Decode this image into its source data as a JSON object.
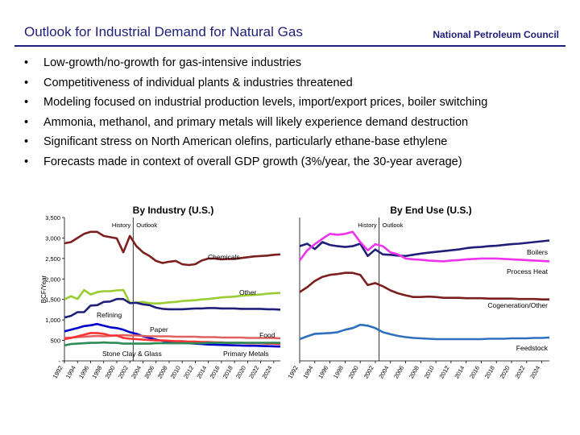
{
  "header": {
    "title": "Outlook for Industrial Demand for Natural Gas",
    "org": "National Petroleum Council"
  },
  "bullets": [
    "Low-growth/no-growth for gas-intensive industries",
    "Competitiveness of individual plants & industries threatened",
    "Modeling focused on industrial production levels, import/export prices, boiler switching",
    "Ammonia, methanol, and primary metals will likely experience demand destruction",
    "Significant stress on North American olefins, particularly ethane-base ethylene",
    "Forecasts made in context of overall GDP growth (3%/year, the 30-year average)"
  ],
  "chart_data": [
    {
      "type": "line",
      "title": "By Industry (U.S.)",
      "ylabel": "BCF/Year",
      "xlabel": "",
      "ylim": [
        0,
        3500
      ],
      "xlim": [
        1992,
        2025
      ],
      "yticks": [
        0,
        500,
        1000,
        1500,
        2000,
        2500,
        3000,
        3500
      ],
      "ytick_labels": [
        "-",
        "500",
        "1,000",
        "1,500",
        "2,000",
        "2,500",
        "3,000",
        "3,500"
      ],
      "xticks": [
        "1992",
        "1994",
        "1996",
        "1998",
        "2000",
        "2002",
        "2004",
        "2006",
        "2008",
        "2010",
        "2012",
        "2014",
        "2016",
        "2018",
        "2020",
        "2022",
        "2024"
      ],
      "divider_year": 2002.5,
      "history_label": "History",
      "outlook_label": "Outlook",
      "grid": false,
      "series": [
        {
          "name": "Chemicals",
          "color": "#7b1f1f",
          "x": [
            1992,
            1993,
            1994,
            1995,
            1996,
            1997,
            1998,
            1999,
            2000,
            2001,
            2002,
            2003,
            2004,
            2005,
            2006,
            2007,
            2008,
            2009,
            2010,
            2011,
            2012,
            2013,
            2014,
            2015,
            2016,
            2017,
            2018,
            2019,
            2020,
            2021,
            2022,
            2023,
            2024,
            2025
          ],
          "values": [
            2870,
            2900,
            3000,
            3100,
            3150,
            3150,
            3050,
            3020,
            2990,
            2650,
            3050,
            2800,
            2650,
            2560,
            2440,
            2390,
            2420,
            2440,
            2360,
            2340,
            2360,
            2450,
            2500,
            2500,
            2480,
            2490,
            2490,
            2510,
            2530,
            2550,
            2560,
            2570,
            2590,
            2600
          ]
        },
        {
          "name": "Other",
          "color": "#9acd32",
          "x": [
            1992,
            1993,
            1994,
            1995,
            1996,
            1997,
            1998,
            1999,
            2000,
            2001,
            2002,
            2003,
            2004,
            2005,
            2006,
            2007,
            2008,
            2009,
            2010,
            2011,
            2012,
            2013,
            2014,
            2015,
            2016,
            2017,
            2018,
            2019,
            2020,
            2021,
            2022,
            2023,
            2024,
            2025
          ],
          "values": [
            1500,
            1580,
            1510,
            1730,
            1620,
            1680,
            1700,
            1700,
            1720,
            1730,
            1420,
            1420,
            1440,
            1410,
            1400,
            1410,
            1430,
            1440,
            1460,
            1470,
            1480,
            1500,
            1510,
            1530,
            1550,
            1560,
            1570,
            1590,
            1600,
            1610,
            1620,
            1640,
            1650,
            1660
          ]
        },
        {
          "name": "Refining",
          "color": "#1f1f7a",
          "x": [
            1992,
            1993,
            1994,
            1995,
            1996,
            1997,
            1998,
            1999,
            2000,
            2001,
            2002,
            2003,
            2004,
            2005,
            2006,
            2007,
            2008,
            2009,
            2010,
            2011,
            2012,
            2013,
            2014,
            2015,
            2016,
            2017,
            2018,
            2019,
            2020,
            2021,
            2022,
            2023,
            2024,
            2025
          ],
          "values": [
            1060,
            1100,
            1190,
            1190,
            1350,
            1360,
            1440,
            1450,
            1510,
            1510,
            1410,
            1420,
            1380,
            1360,
            1300,
            1270,
            1260,
            1260,
            1260,
            1270,
            1280,
            1280,
            1290,
            1290,
            1280,
            1280,
            1280,
            1270,
            1270,
            1270,
            1270,
            1260,
            1260,
            1250
          ]
        },
        {
          "name": "Paper",
          "color": "#0000cc",
          "x": [
            1992,
            1993,
            1994,
            1995,
            1996,
            1997,
            1998,
            1999,
            2000,
            2001,
            2002,
            2003,
            2004,
            2005,
            2006,
            2007,
            2008,
            2009,
            2010,
            2011,
            2012,
            2013,
            2014,
            2015,
            2016,
            2017,
            2018,
            2019,
            2020,
            2021,
            2022,
            2023,
            2024,
            2025
          ],
          "values": [
            720,
            760,
            800,
            850,
            870,
            900,
            860,
            820,
            800,
            760,
            700,
            660,
            600,
            560,
            520,
            490,
            470,
            450,
            440,
            430,
            420,
            410,
            400,
            395,
            390,
            385,
            380,
            375,
            370,
            370,
            365,
            360,
            355,
            350
          ]
        },
        {
          "name": "Food",
          "color": "#e06060",
          "x": [
            1992,
            1993,
            1994,
            1995,
            1996,
            1997,
            1998,
            1999,
            2000,
            2001,
            2002,
            2003,
            2004,
            2005,
            2006,
            2007,
            2008,
            2009,
            2010,
            2011,
            2012,
            2013,
            2014,
            2015,
            2016,
            2017,
            2018,
            2019,
            2020,
            2021,
            2022,
            2023,
            2024,
            2025
          ],
          "values": [
            560,
            570,
            580,
            590,
            600,
            610,
            600,
            610,
            620,
            630,
            620,
            620,
            610,
            600,
            600,
            600,
            600,
            590,
            590,
            590,
            590,
            580,
            580,
            580,
            570,
            570,
            570,
            570,
            560,
            560,
            560,
            560,
            560,
            550
          ]
        },
        {
          "name": "Primary Metals",
          "color": "#ff3333",
          "x": [
            1992,
            1993,
            1994,
            1995,
            1996,
            1997,
            1998,
            1999,
            2000,
            2001,
            2002,
            2003,
            2004,
            2005,
            2006,
            2007,
            2008,
            2009,
            2010,
            2011,
            2012,
            2013,
            2014,
            2015,
            2016,
            2017,
            2018,
            2019,
            2020,
            2021,
            2022,
            2023,
            2024,
            2025
          ],
          "values": [
            530,
            560,
            600,
            640,
            680,
            680,
            660,
            620,
            620,
            560,
            540,
            530,
            520,
            510,
            500,
            500,
            490,
            480,
            480,
            470,
            470,
            460,
            460,
            450,
            450,
            440,
            440,
            440,
            430,
            430,
            430,
            420,
            420,
            410
          ]
        },
        {
          "name": "Stone Clay & Glass",
          "color": "#2e8b57",
          "x": [
            1992,
            1993,
            1994,
            1995,
            1996,
            1997,
            1998,
            1999,
            2000,
            2001,
            2002,
            2003,
            2004,
            2005,
            2006,
            2007,
            2008,
            2009,
            2010,
            2011,
            2012,
            2013,
            2014,
            2015,
            2016,
            2017,
            2018,
            2019,
            2020,
            2021,
            2022,
            2023,
            2024,
            2025
          ],
          "values": [
            380,
            410,
            420,
            430,
            440,
            440,
            450,
            440,
            440,
            420,
            420,
            420,
            420,
            420,
            430,
            430,
            430,
            430,
            430,
            430,
            430,
            430,
            440,
            440,
            440,
            440,
            440,
            440,
            440,
            440,
            440,
            440,
            440,
            440
          ]
        }
      ],
      "annotations": [
        {
          "text": "Chemicals",
          "series": "Chemicals"
        },
        {
          "text": "Other",
          "series": "Other"
        },
        {
          "text": "Refining",
          "series": "Refining"
        },
        {
          "text": "Paper",
          "series": "Paper"
        },
        {
          "text": "Food",
          "series": "Food"
        },
        {
          "text": "Stone Clay & Glass",
          "series": "Stone Clay & Glass"
        },
        {
          "text": "Primary Metals",
          "series": "Primary Metals"
        }
      ]
    },
    {
      "type": "line",
      "title": "By End Use (U.S.)",
      "ylim": [
        0,
        3500
      ],
      "xlim": [
        1992,
        2025
      ],
      "xticks": [
        "1992",
        "1994",
        "1996",
        "1998",
        "2000",
        "2002",
        "2004",
        "2006",
        "2008",
        "2010",
        "2012",
        "2014",
        "2016",
        "2018",
        "2020",
        "2022",
        "2024"
      ],
      "divider_year": 2002.5,
      "history_label": "History",
      "outlook_label": "Outlook",
      "grid": false,
      "series": [
        {
          "name": "Boilers",
          "color": "#1f1f7a",
          "x": [
            1992,
            1993,
            1994,
            1995,
            1996,
            1997,
            1998,
            1999,
            2000,
            2001,
            2002,
            2003,
            2004,
            2005,
            2006,
            2007,
            2008,
            2009,
            2010,
            2011,
            2012,
            2013,
            2014,
            2015,
            2016,
            2017,
            2018,
            2019,
            2020,
            2021,
            2022,
            2023,
            2024,
            2025
          ],
          "values": [
            2800,
            2860,
            2730,
            2900,
            2830,
            2800,
            2780,
            2800,
            2860,
            2560,
            2720,
            2600,
            2590,
            2570,
            2560,
            2590,
            2620,
            2640,
            2660,
            2680,
            2700,
            2720,
            2750,
            2770,
            2780,
            2800,
            2810,
            2830,
            2850,
            2860,
            2880,
            2900,
            2920,
            2940
          ]
        },
        {
          "name": "Process Heat",
          "color": "#ee33ee",
          "x": [
            1992,
            1993,
            1994,
            1995,
            1996,
            1997,
            1998,
            1999,
            2000,
            2001,
            2002,
            2003,
            2004,
            2005,
            2006,
            2007,
            2008,
            2009,
            2010,
            2011,
            2012,
            2013,
            2014,
            2015,
            2016,
            2017,
            2018,
            2019,
            2020,
            2021,
            2022,
            2023,
            2024,
            2025
          ],
          "values": [
            2450,
            2700,
            2850,
            2980,
            3100,
            3080,
            3100,
            3150,
            2900,
            2700,
            2850,
            2800,
            2650,
            2600,
            2500,
            2480,
            2470,
            2450,
            2440,
            2430,
            2450,
            2460,
            2480,
            2490,
            2500,
            2500,
            2500,
            2490,
            2480,
            2470,
            2460,
            2450,
            2440,
            2430
          ]
        },
        {
          "name": "Cogeneration/Other",
          "color": "#7b1f1f",
          "x": [
            1992,
            1993,
            1994,
            1995,
            1996,
            1997,
            1998,
            1999,
            2000,
            2001,
            2002,
            2003,
            2004,
            2005,
            2006,
            2007,
            2008,
            2009,
            2010,
            2011,
            2012,
            2013,
            2014,
            2015,
            2016,
            2017,
            2018,
            2019,
            2020,
            2021,
            2022,
            2023,
            2024,
            2025
          ],
          "values": [
            1680,
            1800,
            1950,
            2050,
            2100,
            2120,
            2150,
            2150,
            2100,
            1850,
            1900,
            1820,
            1720,
            1650,
            1600,
            1560,
            1560,
            1570,
            1560,
            1540,
            1540,
            1540,
            1530,
            1530,
            1530,
            1520,
            1520,
            1520,
            1520,
            1510,
            1510,
            1510,
            1500,
            1500
          ]
        },
        {
          "name": "Feedstock",
          "color": "#2f6fbf",
          "x": [
            1992,
            1993,
            1994,
            1995,
            1996,
            1997,
            1998,
            1999,
            2000,
            2001,
            2002,
            2003,
            2004,
            2005,
            2006,
            2007,
            2008,
            2009,
            2010,
            2011,
            2012,
            2013,
            2014,
            2015,
            2016,
            2017,
            2018,
            2019,
            2020,
            2021,
            2022,
            2023,
            2024,
            2025
          ],
          "values": [
            530,
            600,
            660,
            670,
            680,
            700,
            760,
            800,
            880,
            860,
            800,
            700,
            650,
            610,
            580,
            560,
            550,
            540,
            530,
            530,
            530,
            530,
            530,
            530,
            530,
            540,
            540,
            540,
            550,
            550,
            550,
            560,
            560,
            570
          ]
        }
      ],
      "annotations": [
        {
          "text": "Boilers",
          "series": "Boilers"
        },
        {
          "text": "Process Heat",
          "series": "Process Heat"
        },
        {
          "text": "Cogeneration/Other",
          "series": "Cogeneration/Other"
        },
        {
          "text": "Feedstock",
          "series": "Feedstock"
        }
      ]
    }
  ]
}
